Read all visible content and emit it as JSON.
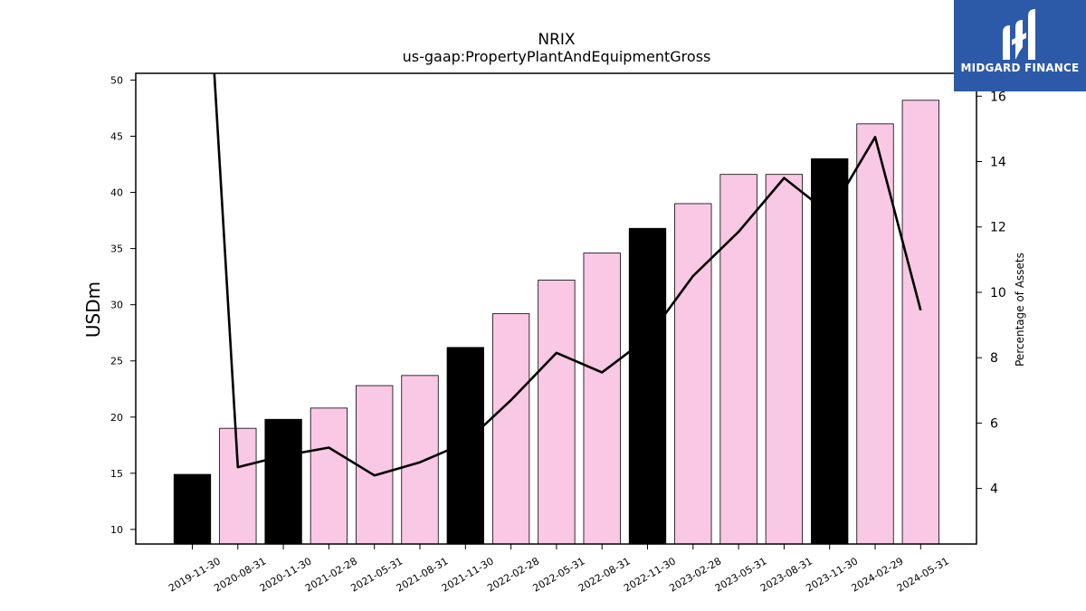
{
  "chart_data": {
    "type": "bar",
    "title": "NRIX",
    "subtitle": "us-gaap:PropertyPlantAndEquipmentGross",
    "ylabel": "USDm",
    "y2label": "Percentage of Assets",
    "ylim": [
      8.7,
      50.6
    ],
    "y2lim": [
      2.3,
      16.7
    ],
    "yticks": [
      10,
      15,
      20,
      25,
      30,
      35,
      40,
      45,
      50
    ],
    "y2ticks": [
      4,
      6,
      8,
      10,
      12,
      14,
      16
    ],
    "categories": [
      "2019-11-30",
      "2020-08-31",
      "2020-11-30",
      "2021-02-28",
      "2021-05-31",
      "2021-08-31",
      "2021-11-30",
      "2022-02-28",
      "2022-05-31",
      "2022-08-31",
      "2022-11-30",
      "2023-02-28",
      "2023-05-31",
      "2023-08-31",
      "2023-11-30",
      "2024-02-29",
      "2024-05-31"
    ],
    "series": [
      {
        "values": [
          14.9,
          19.0,
          19.8,
          20.8,
          22.8,
          23.7,
          26.2,
          29.2,
          32.2,
          34.6,
          36.8,
          39.0,
          41.6,
          41.6,
          43.0,
          46.1,
          48.2
        ],
        "colors": [
          "#000000",
          "#f9c8e4",
          "#000000",
          "#f9c8e4",
          "#f9c8e4",
          "#f9c8e4",
          "#000000",
          "#f9c8e4",
          "#f9c8e4",
          "#f9c8e4",
          "#000000",
          "#f9c8e4",
          "#f9c8e4",
          "#f9c8e4",
          "#000000",
          "#f9c8e4",
          "#f9c8e4"
        ]
      },
      {
        "axis": "secondary",
        "type": "line",
        "color": "#000000",
        "values": [
          28.0,
          4.65,
          5.0,
          5.25,
          4.4,
          4.8,
          5.4,
          6.7,
          8.15,
          7.55,
          8.6,
          10.5,
          11.85,
          13.5,
          12.4,
          14.75,
          9.45
        ]
      }
    ]
  },
  "logo": {
    "text": "MIDGARD FINANCE"
  }
}
